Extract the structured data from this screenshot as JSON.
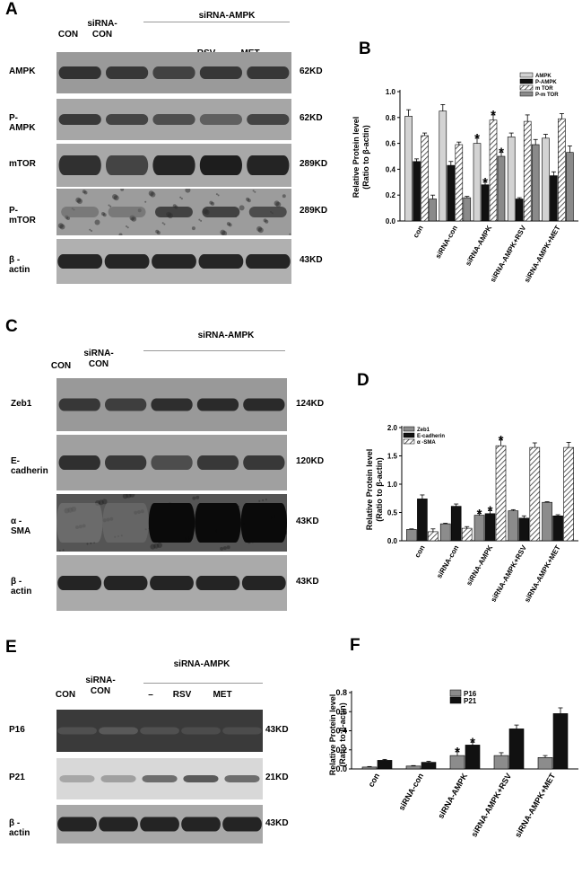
{
  "panels": {
    "A": {
      "label": "A",
      "group": "siRNA-AMPK",
      "lanes": [
        "CON",
        "siRNA-\nCON",
        "–",
        "RSV",
        "MET"
      ],
      "rows": [
        {
          "name": "AMPK",
          "kd": "62KD"
        },
        {
          "name": "P-AMPK",
          "kd": "62KD"
        },
        {
          "name": "mTOR",
          "kd": "289KD"
        },
        {
          "name": "P-mTOR",
          "kd": "289KD"
        },
        {
          "name": "β -actin",
          "kd": "43KD"
        }
      ]
    },
    "C": {
      "label": "C",
      "group": "siRNA-AMPK",
      "lanes": [
        "CON",
        "siRNA-\nCON",
        "–",
        "RSV",
        "MET"
      ],
      "rows": [
        {
          "name": "Zeb1",
          "kd": "124KD"
        },
        {
          "name": "E-cadherin",
          "kd": "120KD"
        },
        {
          "name": "α -SMA",
          "kd": "43KD"
        },
        {
          "name": "β -actin",
          "kd": "43KD"
        }
      ]
    },
    "E": {
      "label": "E",
      "group": "siRNA-AMPK",
      "lanes": [
        "CON",
        "siRNA-\nCON",
        "–",
        "RSV",
        "MET"
      ],
      "rows": [
        {
          "name": "P16",
          "kd": "43KD"
        },
        {
          "name": "P21",
          "kd": "21KD"
        },
        {
          "name": "β -actin",
          "kd": "43KD"
        }
      ]
    }
  },
  "chart_data": [
    {
      "panel": "B",
      "type": "bar",
      "ylabel": "Relative Protein level\n(Ratio to β-actin)",
      "ylim": [
        0,
        1.0
      ],
      "yticks": [
        "0.0",
        "0.2",
        "0.4",
        "0.6",
        "0.8",
        "1.0"
      ],
      "categories": [
        "con",
        "siRNA-con",
        "siRNA-AMPK",
        "siRNA-AMPK+RSV",
        "siRNA-AMPK+MET"
      ],
      "series": [
        {
          "name": "AMPK",
          "values": [
            0.81,
            0.85,
            0.6,
            0.65,
            0.64
          ],
          "err": [
            0.05,
            0.05,
            0.04,
            0.03,
            0.03
          ],
          "star": [
            false,
            false,
            true,
            false,
            false
          ]
        },
        {
          "name": "P-AMPK",
          "values": [
            0.46,
            0.43,
            0.28,
            0.17,
            0.35
          ],
          "err": [
            0.02,
            0.03,
            0.02,
            0.01,
            0.03
          ],
          "star": [
            false,
            false,
            true,
            false,
            false
          ]
        },
        {
          "name": "m TOR",
          "values": [
            0.66,
            0.59,
            0.78,
            0.77,
            0.79
          ],
          "err": [
            0.02,
            0.02,
            0.04,
            0.05,
            0.04
          ],
          "star": [
            false,
            false,
            true,
            false,
            false
          ]
        },
        {
          "name": "P-m TOR",
          "values": [
            0.17,
            0.18,
            0.5,
            0.59,
            0.53
          ],
          "err": [
            0.03,
            0.01,
            0.03,
            0.04,
            0.05
          ],
          "star": [
            false,
            false,
            true,
            false,
            false
          ]
        }
      ],
      "legend_position": "top-right"
    },
    {
      "panel": "D",
      "type": "bar",
      "ylabel": "Relative Protein level\n(Ratio to β-actin)",
      "ylim": [
        0,
        2.0
      ],
      "yticks": [
        "0.0",
        "0.5",
        "1.0",
        "1.5",
        "2.0"
      ],
      "categories": [
        "con",
        "siRNA-con",
        "siRNA-AMPK",
        "siRNA-AMPK+RSV",
        "siRNA-AMPK+MET"
      ],
      "series": [
        {
          "name": "Zeb1",
          "values": [
            0.2,
            0.3,
            0.45,
            0.53,
            0.68
          ],
          "err": [
            0.01,
            0.01,
            0.03,
            0.02,
            0.01
          ],
          "star": [
            false,
            false,
            true,
            false,
            false
          ]
        },
        {
          "name": "E-cadherin",
          "values": [
            0.74,
            0.61,
            0.48,
            0.4,
            0.44
          ],
          "err": [
            0.07,
            0.04,
            0.05,
            0.04,
            0.02
          ],
          "star": [
            false,
            false,
            true,
            false,
            false
          ]
        },
        {
          "name": "α -SMA",
          "values": [
            0.16,
            0.22,
            1.68,
            1.65,
            1.65
          ],
          "err": [
            0.05,
            0.03,
            0.1,
            0.08,
            0.09
          ],
          "star": [
            false,
            false,
            true,
            false,
            false
          ]
        }
      ],
      "legend_position": "top-left"
    },
    {
      "panel": "F",
      "type": "bar",
      "ylabel": "Relative Protein level\n(Ratio to β-actin)",
      "ylim": [
        0,
        0.8
      ],
      "yticks": [
        "0.0",
        "0.2",
        "0.4",
        "0.6",
        "0.8"
      ],
      "categories": [
        "con",
        "siRNA-con",
        "siRNA-AMPK",
        "siRNA-AMPK+RSV",
        "siRNA-AMPK+MET"
      ],
      "series": [
        {
          "name": "P16",
          "values": [
            0.02,
            0.03,
            0.14,
            0.14,
            0.12
          ],
          "err": [
            0.005,
            0.005,
            0.04,
            0.03,
            0.02
          ],
          "star": [
            false,
            false,
            true,
            false,
            false
          ]
        },
        {
          "name": "P21",
          "values": [
            0.09,
            0.07,
            0.25,
            0.42,
            0.58
          ],
          "err": [
            0.01,
            0.01,
            0.03,
            0.04,
            0.06
          ],
          "star": [
            false,
            false,
            true,
            false,
            false
          ]
        }
      ],
      "legend_position": "top-center"
    }
  ]
}
